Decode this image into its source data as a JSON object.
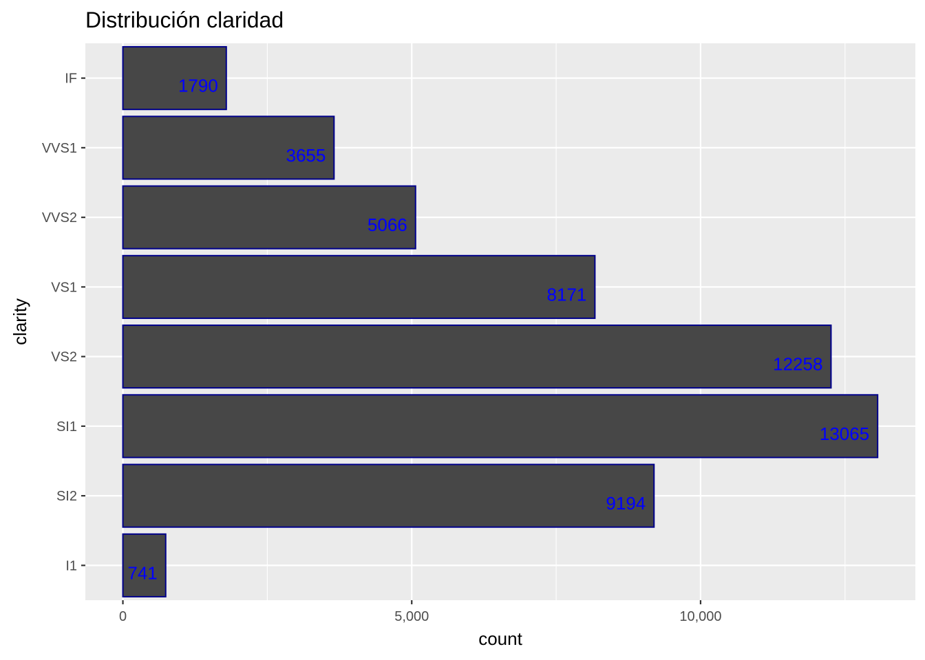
{
  "chart_data": {
    "type": "bar",
    "orientation": "horizontal",
    "title": "Distribución claridad",
    "xlabel": "count",
    "ylabel": "clarity",
    "categories": [
      "I1",
      "SI2",
      "SI1",
      "VS2",
      "VS1",
      "VVS2",
      "VVS1",
      "IF"
    ],
    "values": [
      741,
      9194,
      13065,
      12258,
      8171,
      5066,
      3655,
      1790
    ],
    "data_labels": [
      "741",
      "9194",
      "13065",
      "12258",
      "8171",
      "5066",
      "3655",
      "1790"
    ],
    "xlim": [
      -650,
      13718
    ],
    "x_ticks": [
      0,
      5000,
      10000
    ],
    "x_tick_labels": [
      "0",
      "5,000",
      "10,000"
    ],
    "grid": true,
    "legend": "none",
    "colors": {
      "bar_fill": "#474747",
      "bar_outline": "#00008b",
      "data_label": "#0000ff",
      "panel_background": "#ebebeb",
      "grid": "#ffffff"
    }
  }
}
